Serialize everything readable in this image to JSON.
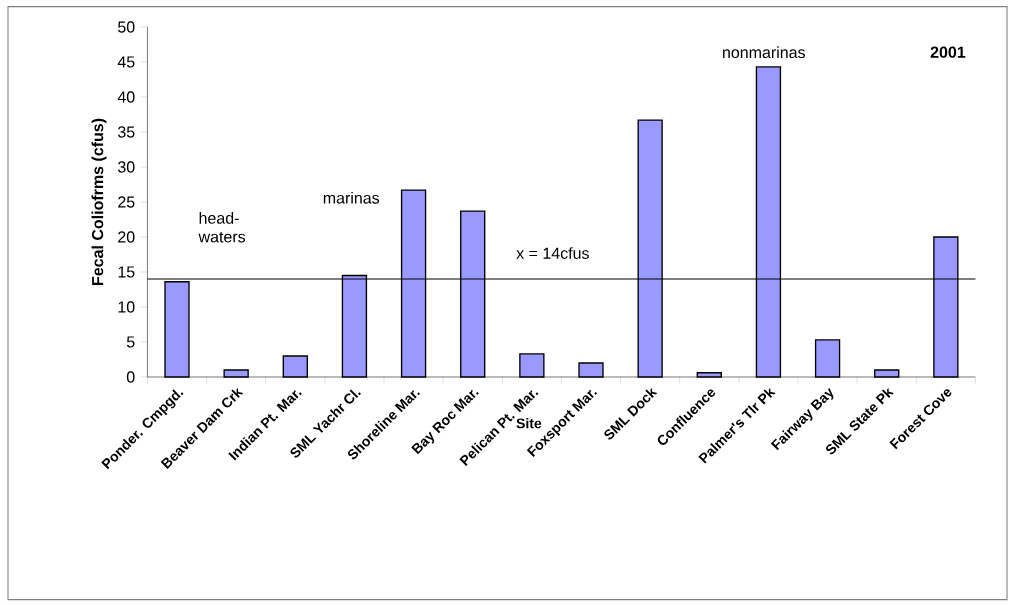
{
  "chart_data": {
    "type": "bar",
    "categories": [
      "Ponder. Cmpgd.",
      "Beaver Dam Crk",
      "Indian Pt. Mar.",
      "SML Yachr Cl.",
      "Shoreline Mar.",
      "Bay Roc Mar.",
      "Pelican Pt. Mar.",
      "Foxsport Mar.",
      "SML Dock",
      "Confluence",
      "Palmer's Tlr Pk",
      "Fairway Bay",
      "SML State Pk",
      "Forest Cove"
    ],
    "values": [
      13.6,
      1.0,
      3.0,
      14.5,
      26.7,
      23.7,
      3.3,
      2.0,
      36.7,
      0.6,
      44.3,
      5.3,
      1.0,
      20.0
    ],
    "color": "#9999ff",
    "xlabel": "Site",
    "ylabel": "Fecal Coliofrms (cfus)",
    "ylim": [
      0,
      50
    ],
    "yticks": [
      0,
      5,
      10,
      15,
      20,
      25,
      30,
      35,
      40,
      45,
      50
    ],
    "ref_lines": [
      {
        "axis": "y",
        "value": 14,
        "label": "x = 14cfus",
        "color": "#000000"
      }
    ],
    "annotations": [
      "head- waters",
      "marinas",
      "nonmarinas",
      "2001"
    ],
    "grid": false
  }
}
